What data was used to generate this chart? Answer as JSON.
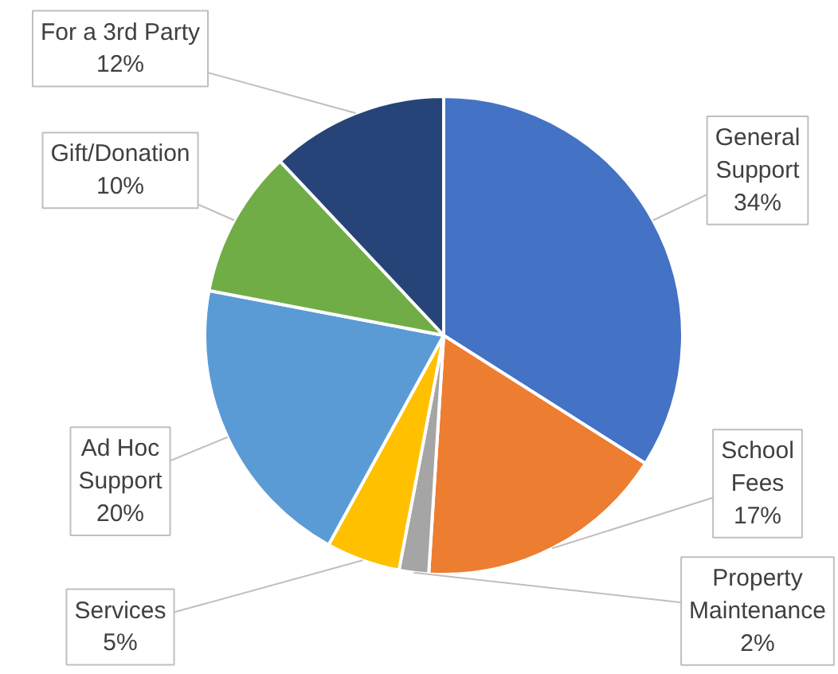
{
  "chart_data": {
    "type": "pie",
    "categories": [
      "General\nSupport",
      "School\nFees",
      "Property\nMaintenance",
      "Services",
      "Ad Hoc\nSupport",
      "Gift/Donation",
      "For a 3rd Party"
    ],
    "values": [
      34,
      17,
      2,
      5,
      20,
      10,
      12
    ],
    "colors": [
      "#4472c4",
      "#ed7d31",
      "#a5a5a5",
      "#ffc000",
      "#5b9bd5",
      "#70ad47",
      "#264478"
    ],
    "value_labels": [
      "34%",
      "17%",
      "2%",
      "5%",
      "20%",
      "10%",
      "12%"
    ]
  }
}
